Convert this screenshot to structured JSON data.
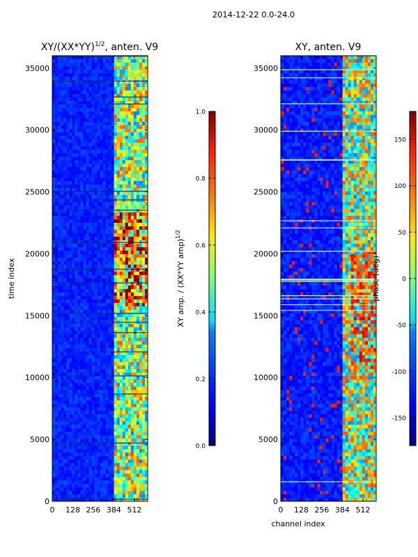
{
  "figure": {
    "suptitle": "2014-12-22 0.0-24.0"
  },
  "chart_data": [
    {
      "type": "heatmap",
      "title": "XY/(XX*YY)",
      "title_superscript": "1/2",
      "title_suffix": ", anten. V9",
      "xlabel": "",
      "ylabel": "time index",
      "xlim": [
        0,
        595
      ],
      "ylim": [
        0,
        36000
      ],
      "xticks": [
        0,
        128,
        256,
        384,
        512
      ],
      "yticks": [
        0,
        5000,
        10000,
        15000,
        20000,
        25000,
        30000,
        35000
      ],
      "colormap": "jet",
      "colorbar": {
        "label": "XY amp. / (XX*YY amp)",
        "label_superscript": "1/2",
        "range": [
          0.0,
          1.0
        ],
        "ticks": [
          "0.0",
          "0.2",
          "0.4",
          "0.6",
          "0.8",
          "1.0"
        ]
      }
    },
    {
      "type": "heatmap",
      "title": "XY, anten. V9",
      "xlabel": "channel index",
      "ylabel": "",
      "xlim": [
        0,
        595
      ],
      "ylim": [
        0,
        36000
      ],
      "xticks": [
        0,
        128,
        256,
        384,
        512
      ],
      "yticks": [
        0,
        5000,
        10000,
        15000,
        20000,
        25000,
        30000,
        35000
      ],
      "colormap": "jet",
      "colorbar": {
        "label": "phase (deg)",
        "range": [
          -180,
          180
        ],
        "ticks": [
          -150,
          -100,
          -50,
          0,
          50,
          100,
          150
        ]
      }
    }
  ]
}
